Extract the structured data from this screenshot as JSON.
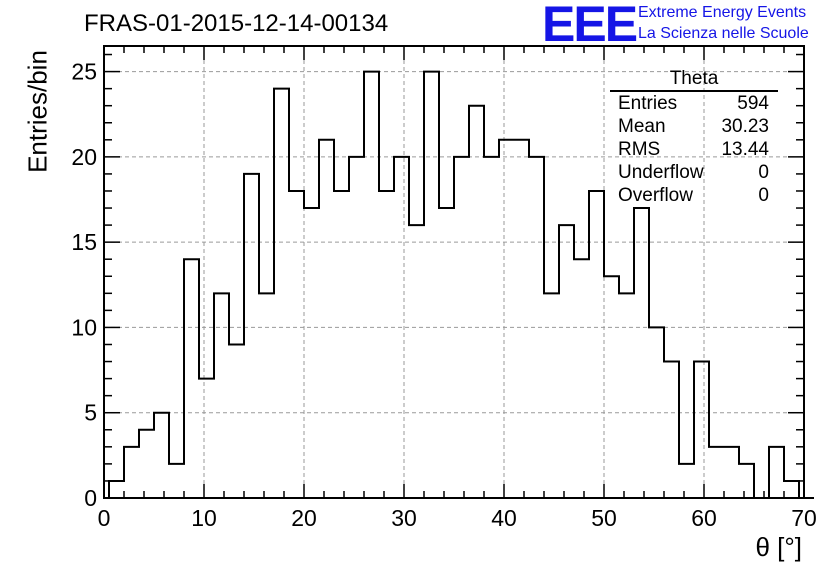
{
  "title": "FRAS-01-2015-12-14-00134",
  "logo": {
    "mark": "EEE",
    "line1": "Extreme Energy Events",
    "line2": "La Scienza nelle Scuole"
  },
  "stats": {
    "title": "Theta",
    "rows": [
      {
        "label": "Entries",
        "value": "594"
      },
      {
        "label": "Mean",
        "value": "30.23"
      },
      {
        "label": "RMS",
        "value": "13.44"
      },
      {
        "label": "Underflow",
        "value": "0"
      },
      {
        "label": "Overflow",
        "value": "0"
      }
    ]
  },
  "chart_data": {
    "type": "bar",
    "style": "step-histogram",
    "xlabel": "θ [°]",
    "ylabel": "Entries/bin",
    "xlim": [
      0,
      70
    ],
    "ylim": [
      0,
      26.5
    ],
    "bin_width": 1.5,
    "bin_start": 0.5,
    "x_ticks": [
      0,
      10,
      20,
      30,
      40,
      50,
      60,
      70
    ],
    "y_ticks": [
      0,
      5,
      10,
      15,
      20,
      25
    ],
    "grid": true,
    "grid_style": "dashed",
    "values": [
      1,
      3,
      4,
      5,
      2,
      14,
      7,
      12,
      9,
      19,
      12,
      24,
      18,
      17,
      21,
      18,
      20,
      25,
      18,
      20,
      16,
      25,
      17,
      20,
      23,
      20,
      21,
      21,
      20,
      12,
      16,
      14,
      18,
      13,
      12,
      17,
      10,
      8,
      2,
      8,
      3,
      3,
      2,
      0,
      3,
      1,
      0
    ]
  }
}
